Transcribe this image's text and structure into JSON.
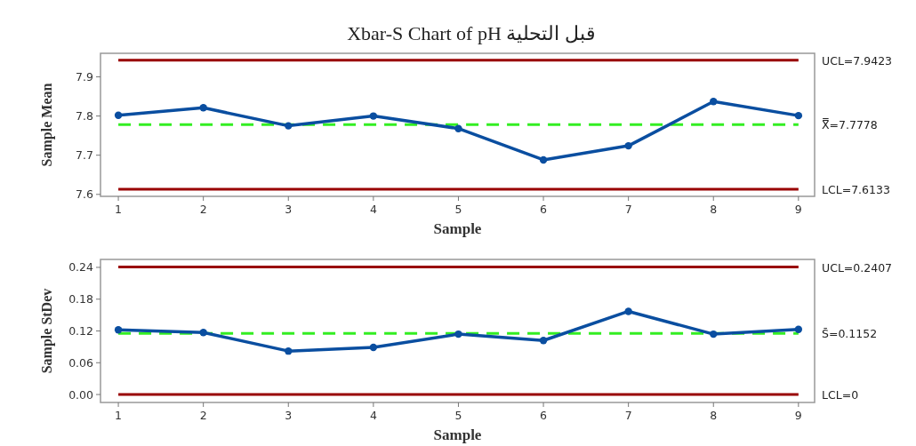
{
  "chart_data": [
    {
      "type": "line",
      "title": "Xbar-S Chart of pH قبل التحلية",
      "xlabel": "Sample",
      "ylabel": "Sample Mean",
      "x": [
        1,
        2,
        3,
        4,
        5,
        6,
        7,
        8,
        9
      ],
      "series": [
        {
          "color": "#0a4ea0",
          "values": [
            7.802,
            7.821,
            7.775,
            7.8,
            7.768,
            7.688,
            7.724,
            7.837,
            7.801
          ]
        }
      ],
      "xlim": [
        0.79,
        9.19
      ],
      "xticks": [
        1,
        2,
        3,
        4,
        5,
        6,
        7,
        8,
        9
      ],
      "ylim": [
        7.595,
        7.96
      ],
      "yticks": [
        7.6,
        7.7,
        7.8,
        7.9
      ],
      "ref_lines": [
        {
          "axis": "y",
          "value": 7.9423,
          "label": "UCL=7.9423",
          "color": "#990000",
          "line_style": "solid"
        },
        {
          "axis": "y",
          "value": 7.7778,
          "label": "X̿=7.7778",
          "color": "#33ee22",
          "line_style": "dashed"
        },
        {
          "axis": "y",
          "value": 7.6133,
          "label": "LCL=7.6133",
          "color": "#990000",
          "line_style": "solid"
        }
      ],
      "marker": "circle",
      "line_style": "solid",
      "grid": false
    },
    {
      "type": "line",
      "xlabel": "Sample",
      "ylabel": "Sample StDev",
      "x": [
        1,
        2,
        3,
        4,
        5,
        6,
        7,
        8,
        9
      ],
      "series": [
        {
          "color": "#0a4ea0",
          "values": [
            0.122,
            0.117,
            0.082,
            0.089,
            0.114,
            0.102,
            0.157,
            0.114,
            0.123
          ]
        }
      ],
      "xlim": [
        0.79,
        9.19
      ],
      "xticks": [
        1,
        2,
        3,
        4,
        5,
        6,
        7,
        8,
        9
      ],
      "ylim": [
        -0.015,
        0.255
      ],
      "yticks": [
        {
          "value": 0,
          "label": "0.00"
        },
        0.06,
        0.12,
        0.18,
        0.24
      ],
      "ref_lines": [
        {
          "axis": "y",
          "value": 0.2407,
          "label": "UCL=0.2407",
          "color": "#990000",
          "line_style": "solid"
        },
        {
          "axis": "y",
          "value": 0.1152,
          "label": "S̄=0.1152",
          "color": "#33ee22",
          "line_style": "dashed"
        },
        {
          "axis": "y",
          "value": 0,
          "label": "LCL=0",
          "color": "#990000",
          "line_style": "solid"
        }
      ],
      "marker": "circle",
      "line_style": "solid",
      "grid": false
    }
  ]
}
